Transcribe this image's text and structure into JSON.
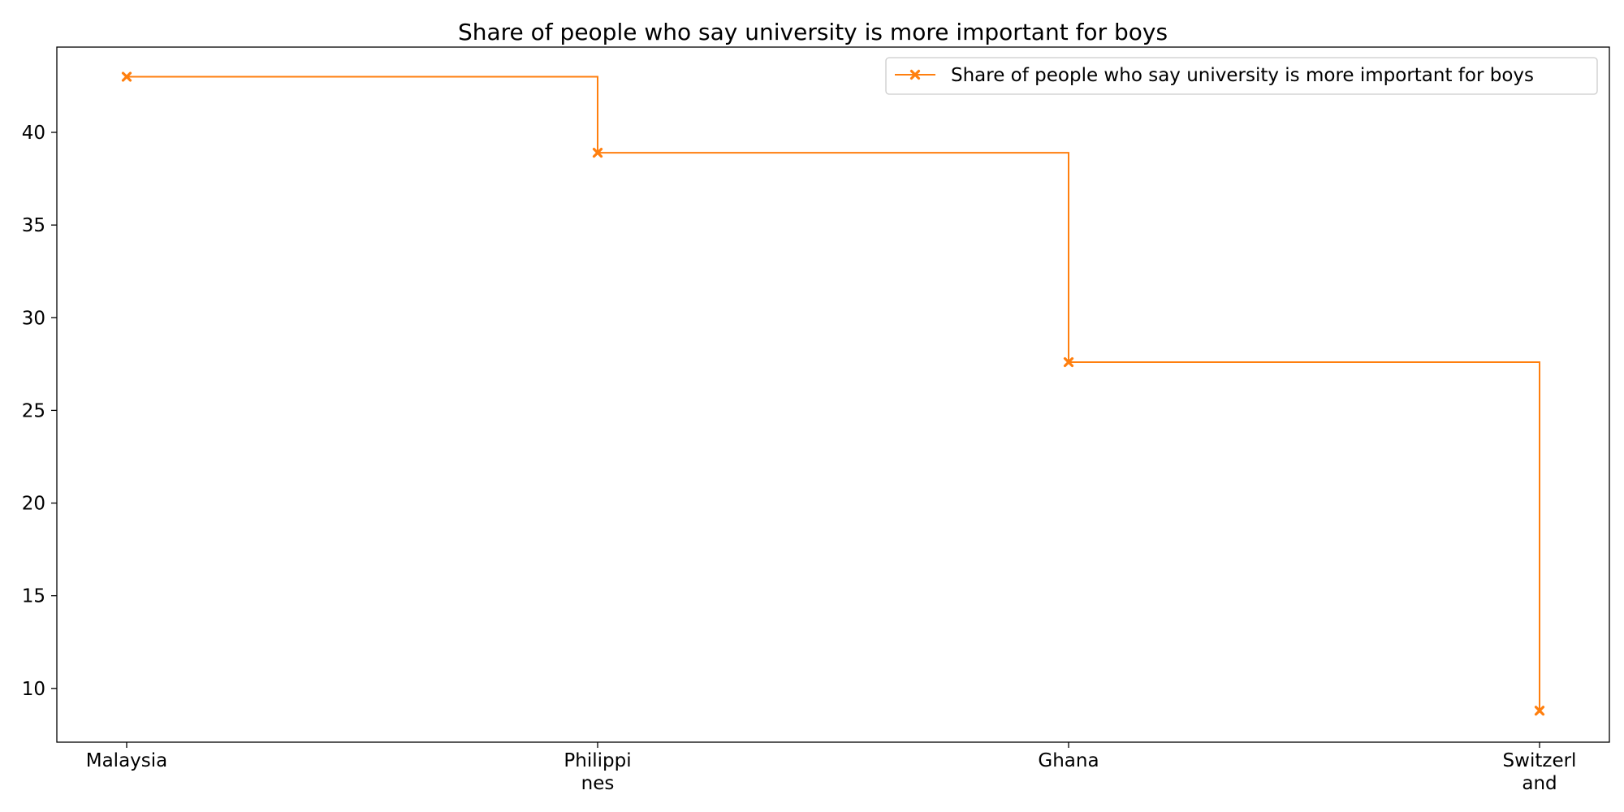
{
  "chart_data": {
    "type": "line",
    "step": "post",
    "title": "Share of people who say university is more important for boys",
    "xlabel": "",
    "ylabel": "",
    "categories": [
      [
        "Malaysia"
      ],
      [
        "Philippi",
        "nes"
      ],
      [
        "Ghana"
      ],
      [
        "Switzerl",
        "and"
      ]
    ],
    "series": [
      {
        "name": "Share of people who say university is more important for boys",
        "values": [
          43.0,
          38.9,
          27.6,
          8.8
        ],
        "color": "#ff7f0e",
        "marker": "x-filled"
      }
    ],
    "ylim": [
      7.1,
      44.6
    ],
    "yticks": [
      10,
      15,
      20,
      25,
      30,
      35,
      40
    ],
    "grid": false,
    "legend_position": "top-right"
  }
}
